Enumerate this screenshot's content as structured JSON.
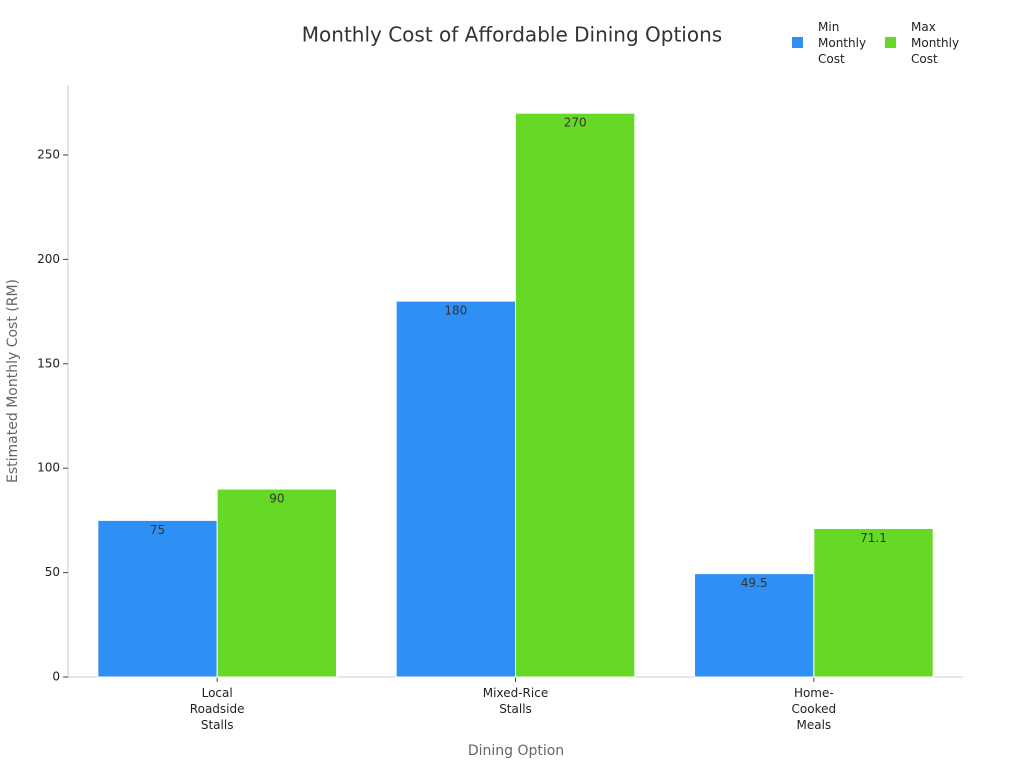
{
  "chart_data": {
    "type": "bar",
    "title": "Monthly Cost of Affordable Dining Options",
    "x_label": "Dining Option",
    "y_label": "Estimated Monthly Cost (RM)",
    "categories": [
      "Local Roadside Stalls",
      "Mixed-Rice Stalls",
      "Home-Cooked Meals"
    ],
    "series": [
      {
        "name": "Min Monthly Cost",
        "color": "#2e8ff5",
        "values": [
          75,
          180,
          49.5
        ]
      },
      {
        "name": "Max Monthly Cost",
        "color": "#66d927",
        "values": [
          90,
          270,
          71.1
        ]
      }
    ],
    "ylim": [
      0,
      283.5
    ],
    "yticks": [
      0,
      50,
      100,
      150,
      200,
      250
    ],
    "grid": false,
    "legend": "top-right"
  }
}
